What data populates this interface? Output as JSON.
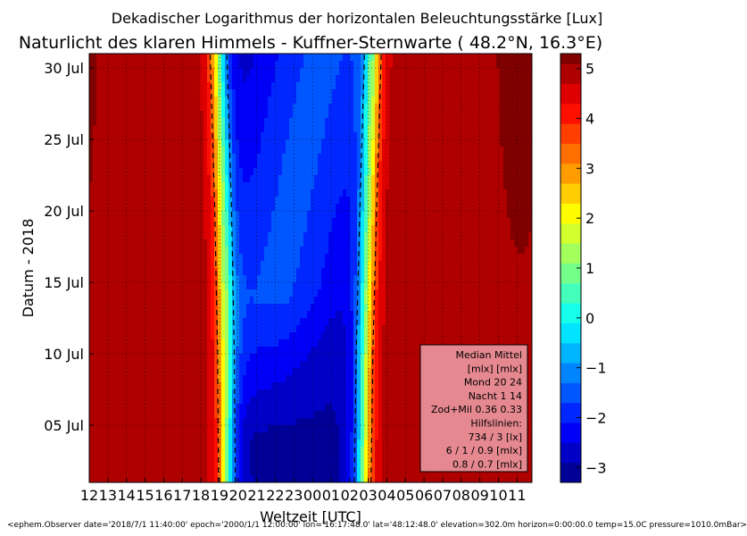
{
  "chart_data": {
    "type": "heatmap",
    "supertitle": "Dekadischer Logarithmus der horizontalen Beleuchtungsstärke [Lux]",
    "title": "Naturlicht des klaren Himmels - Kuffner-Sternwarte ( 48.2°N, 16.3°E)",
    "xlabel": "Weltzeit [UTC]",
    "ylabel": "Datum - 2018",
    "x_ticks": [
      "12",
      "13",
      "14",
      "15",
      "16",
      "17",
      "18",
      "19",
      "20",
      "21",
      "22",
      "23",
      "00",
      "01",
      "02",
      "03",
      "04",
      "05",
      "06",
      "07",
      "08",
      "09",
      "10",
      "11"
    ],
    "x_range_hours_utc": [
      12,
      35.8
    ],
    "y_ticks": [
      {
        "day": 5,
        "label": "05 Jul"
      },
      {
        "day": 10,
        "label": "10 Jul"
      },
      {
        "day": 15,
        "label": "15 Jul"
      },
      {
        "day": 20,
        "label": "20 Jul"
      },
      {
        "day": 25,
        "label": "25 Jul"
      },
      {
        "day": 30,
        "label": "30 Jul"
      }
    ],
    "y_range_day_of_july": [
      1,
      31
    ],
    "colorbar": {
      "range": [
        -3.3,
        5.3
      ],
      "ticks": [
        "−3",
        "−2",
        "−1",
        "0",
        "1",
        "2",
        "3",
        "4",
        "5"
      ],
      "tick_values": [
        -3,
        -2,
        -1,
        0,
        1,
        2,
        3,
        4,
        5
      ]
    },
    "grid": true,
    "day_level_log_lux": 5.0,
    "night_level_log_lux": -3.0,
    "sunset_curve": [
      {
        "day": 1,
        "set_center_utc": 19.4,
        "rise_center_utc": 2.7
      },
      {
        "day": 10,
        "set_center_utc": 19.35,
        "rise_center_utc": 2.8
      },
      {
        "day": 20,
        "set_center_utc": 19.2,
        "rise_center_utc": 3.0
      },
      {
        "day": 31,
        "set_center_utc": 18.95,
        "rise_center_utc": 3.25
      }
    ],
    "moon_glow_note": "moonlit lighter band in the night region from about 05 Jul to 30 Jul",
    "legend_box": {
      "position": "lower-right",
      "lines": [
        "Median Mittel",
        "[mlx]  [mlx]",
        "Mond   20  24",
        "Nacht   1  14",
        "Zod+Mil 0.36  0.33",
        "Hilfslinien:",
        "734 / 3  [lx]",
        "6 /  1 / 0.9 [mlx]",
        "0.8 / 0.7 [mlx]"
      ]
    },
    "footer": "<ephem.Observer date='2018/7/1 11:40:00' epoch='2000/1/1 12:00:00' lon='16:17:48.0' lat='48:12:48.0' elevation=302.0m horizon=0:00:00.0 temp=15.0C pressure=1010.0mBar>"
  }
}
